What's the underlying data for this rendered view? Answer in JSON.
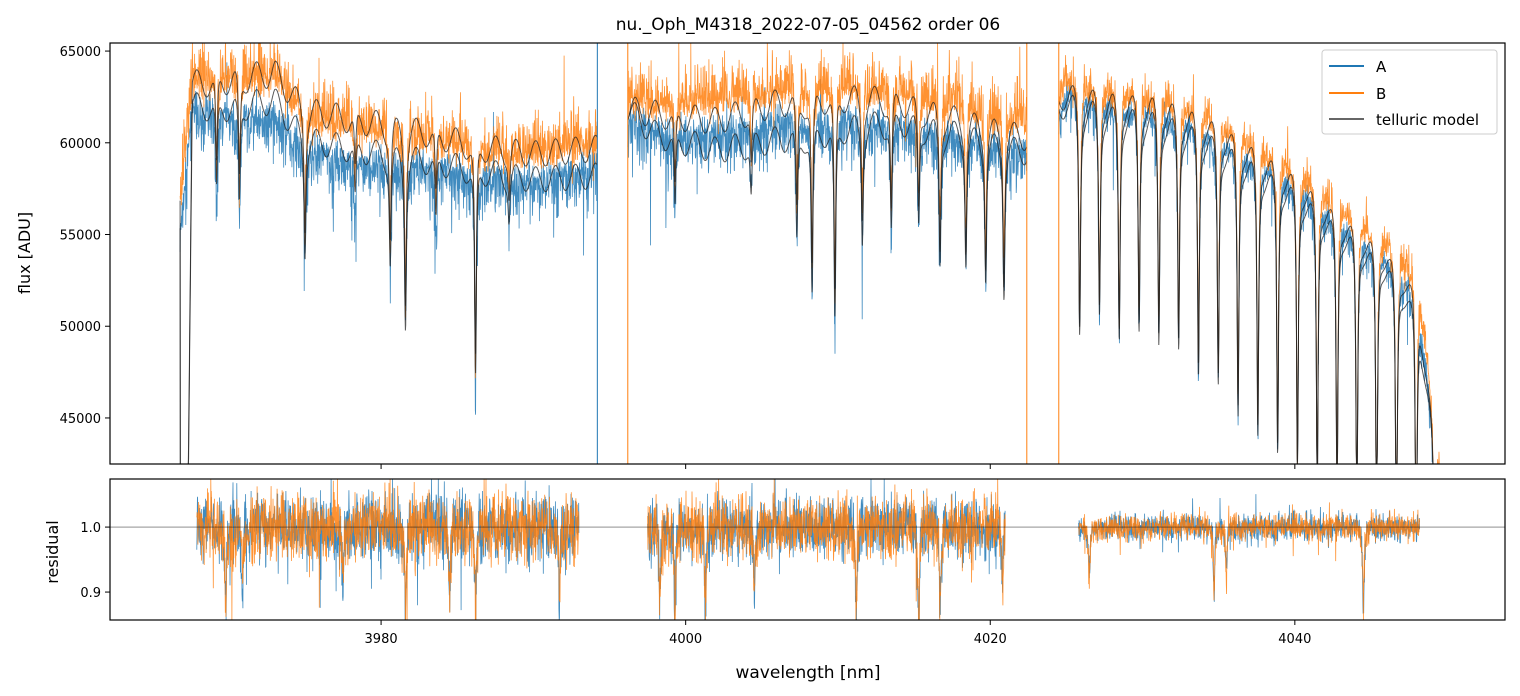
{
  "chart_data": [
    {
      "type": "line",
      "title": "nu._Oph_M4318_2022-07-05_04562  order 06",
      "xlabel": "",
      "ylabel": "flux [ADU]",
      "xlim": [
        3962.2,
        4053.8
      ],
      "ylim": [
        42490,
        65440
      ],
      "yticks": [
        45000,
        50000,
        55000,
        60000,
        65000
      ],
      "xticks": [
        3980,
        4000,
        4020,
        4040
      ],
      "legend": {
        "placement": "top-right",
        "entries": [
          "A",
          "B",
          "telluric model"
        ]
      },
      "colors": {
        "A": "#1f77b4",
        "B": "#ff7f0e",
        "telluric model": "#404040"
      },
      "segments": [
        {
          "range": [
            3966.8,
            3994.2
          ],
          "continuum": [
            [
              3966.8,
              55000,
              56500,
              0,
              0
            ],
            [
              3967.6,
              61800,
              63500,
              62000,
              63200
            ],
            [
              3970,
              61500,
              63600,
              62000,
              63500
            ],
            [
              3973,
              61300,
              63800,
              62300,
              63800
            ],
            [
              3975,
              59500,
              61500,
              60200,
              61800
            ],
            [
              3978,
              59000,
              61000,
              59700,
              61300
            ],
            [
              3982,
              58800,
              60500,
              59200,
              60800
            ],
            [
              3986,
              58300,
              59800,
              58600,
              59900
            ],
            [
              3990,
              57800,
              59500,
              58000,
              59400
            ],
            [
              3994.2,
              58500,
              60000,
              58200,
              59700
            ]
          ],
          "lines": [
            [
              3969.2,
              0.08
            ],
            [
              3970.7,
              0.09
            ],
            [
              3975.0,
              0.1
            ],
            [
              3978.3,
              0.05
            ],
            [
              3980.6,
              0.1
            ],
            [
              3981.6,
              0.15
            ],
            [
              3983.6,
              0.06
            ],
            [
              3986.2,
              0.2
            ],
            [
              3988.4,
              0.04
            ]
          ],
          "noise": 1400
        },
        {
          "range": [
            3996.2,
            4022.4
          ],
          "continuum": [
            [
              3996.2,
              61000,
              62500,
              61800,
              61800
            ],
            [
              3998,
              60500,
              62200,
              60500,
              61600
            ],
            [
              4002,
              60300,
              62500,
              59600,
              61200
            ],
            [
              4006,
              61000,
              63000,
              60200,
              62200
            ],
            [
              4010,
              61300,
              63200,
              60800,
              62600
            ],
            [
              4014,
              61000,
              62800,
              61200,
              62300
            ],
            [
              4018,
              60300,
              62300,
              60500,
              61300
            ],
            [
              4022.4,
              59500,
              61200,
              59500,
              60300
            ]
          ],
          "lines": [
            [
              3999.3,
              0.07
            ],
            [
              4004.3,
              0.05
            ],
            [
              4007.3,
              0.1
            ],
            [
              4008.3,
              0.15
            ],
            [
              4009.8,
              0.18
            ],
            [
              4011.6,
              0.1
            ],
            [
              4013.5,
              0.1
            ],
            [
              4015.3,
              0.09
            ],
            [
              4016.7,
              0.12
            ],
            [
              4018.4,
              0.11
            ],
            [
              4019.7,
              0.12
            ],
            [
              4020.9,
              0.13
            ]
          ],
          "noise": 1400
        },
        {
          "range": [
            4024.5,
            4049.5
          ],
          "continuum": [
            [
              4024.5,
              61000,
              62500,
              61800,
              62300
            ],
            [
              4025,
              62800,
              63400,
              62300,
              62800
            ],
            [
              4028,
              62200,
              63000,
              61700,
              62400
            ],
            [
              4031,
              61800,
              62600,
              61400,
              62200
            ],
            [
              4034,
              60800,
              61800,
              60500,
              61300
            ],
            [
              4037,
              59300,
              60300,
              59000,
              59800
            ],
            [
              4040,
              57800,
              58800,
              57500,
              58200
            ],
            [
              4043,
              55800,
              56800,
              55400,
              56000
            ],
            [
              4046,
              53800,
              54700,
              53500,
              54100
            ],
            [
              4048,
              52000,
              53200,
              51000,
              52000
            ],
            [
              4049.5,
              42000,
              43000,
              42000,
              42000
            ]
          ],
          "lines": [
            [
              4025.87,
              0.2
            ],
            [
              4027.17,
              0.18
            ],
            [
              4028.47,
              0.2
            ],
            [
              4029.77,
              0.19
            ],
            [
              4031.07,
              0.2
            ],
            [
              4032.37,
              0.2
            ],
            [
              4033.67,
              0.22
            ],
            [
              4034.97,
              0.22
            ],
            [
              4036.27,
              0.24
            ],
            [
              4037.57,
              0.25
            ],
            [
              4038.87,
              0.26
            ],
            [
              4040.17,
              0.27
            ],
            [
              4041.47,
              0.28
            ],
            [
              4042.77,
              0.28
            ],
            [
              4044.07,
              0.28
            ],
            [
              4045.37,
              0.29
            ],
            [
              4046.67,
              0.3
            ],
            [
              4047.97,
              0.3
            ],
            [
              4049.2,
              0.3
            ]
          ],
          "noise": 900
        }
      ],
      "spikes": [
        {
          "wl": 3994.2,
          "series": "A"
        },
        {
          "wl": 3996.2,
          "series": "B"
        },
        {
          "wl": 4022.4,
          "series": "B"
        },
        {
          "wl": 4024.5,
          "series": "B"
        }
      ]
    },
    {
      "type": "line",
      "xlabel": "wavelength [nm]",
      "ylabel": "residual",
      "xlim": [
        3962.2,
        4053.8
      ],
      "ylim": [
        0.857,
        1.074
      ],
      "yticks": [
        "0.9",
        "1.0"
      ],
      "xticks": [
        "3980",
        "4000",
        "4020",
        "4040"
      ],
      "reference_line": 1.0,
      "segments": [
        {
          "range": [
            3967.9,
            3993.0
          ],
          "noise": 0.05,
          "dips": [
            [
              3969.8,
              0.12
            ],
            [
              3970.9,
              0.1
            ],
            [
              3977.5,
              0.1
            ],
            [
              3981.6,
              0.15
            ],
            [
              3984.5,
              0.1
            ],
            [
              3986.2,
              0.12
            ],
            [
              3991.7,
              0.12
            ]
          ]
        },
        {
          "range": [
            3997.5,
            4021.0
          ],
          "noise": 0.045,
          "dips": [
            [
              3998.3,
              0.12
            ],
            [
              3999.3,
              0.15
            ],
            [
              4001.3,
              0.13
            ],
            [
              4004.5,
              0.1
            ],
            [
              4011.2,
              0.14
            ],
            [
              4015.3,
              0.15
            ],
            [
              4016.7,
              0.12
            ],
            [
              4020.8,
              0.08
            ]
          ]
        },
        {
          "range": [
            4025.8,
            4048.2
          ],
          "noise": 0.02,
          "dips": [
            [
              4026.5,
              0.08
            ],
            [
              4034.7,
              0.09
            ],
            [
              4035.5,
              0.07
            ],
            [
              4044.5,
              0.13
            ]
          ]
        }
      ]
    }
  ]
}
